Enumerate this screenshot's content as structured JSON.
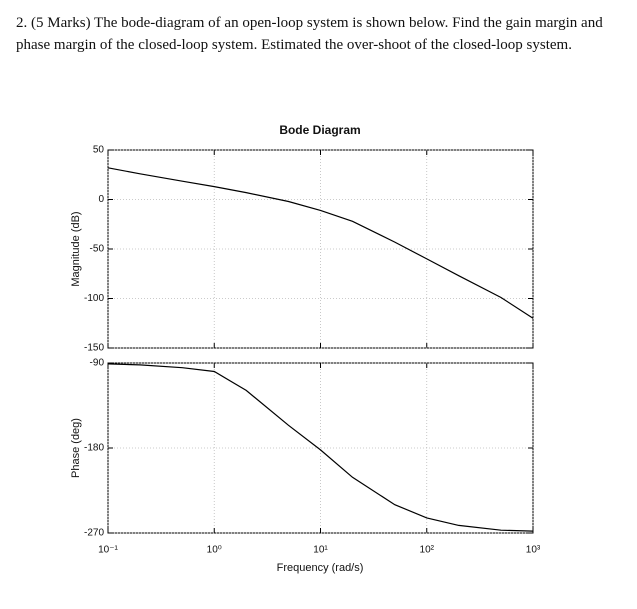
{
  "question": "2. (5 Marks) The bode-diagram of an open-loop system is shown below. Find the gain margin and phase margin of the closed-loop system. Estimated the over-shoot of the closed-loop system.",
  "chart_data": [
    {
      "type": "line",
      "title": "Bode Diagram",
      "ylabel": "Magnitude (dB)",
      "log_x": true,
      "grid": true,
      "x": [
        0.1,
        0.2,
        0.5,
        1,
        2,
        5,
        10,
        20,
        50,
        100,
        200,
        500,
        1000
      ],
      "values": [
        32,
        26,
        18.5,
        13,
        7,
        -2,
        -11,
        -22,
        -43,
        -60,
        -77,
        -99,
        -120
      ],
      "color": "#000000",
      "xlim": [
        0.1,
        1000
      ],
      "xticks": [
        0.1,
        1,
        10,
        100,
        1000
      ],
      "ylim": [
        -150,
        50
      ],
      "yticks": [
        50,
        0,
        -50,
        -100,
        -150
      ]
    },
    {
      "type": "line",
      "ylabel": "Phase (deg)",
      "xlabel": "Frequency (rad/s)",
      "log_x": true,
      "grid": true,
      "x": [
        0.1,
        0.2,
        0.5,
        1,
        2,
        5,
        10,
        20,
        50,
        100,
        200,
        500,
        1000
      ],
      "values": [
        -91,
        -92,
        -95,
        -99,
        -119,
        -156,
        -182,
        -211,
        -240,
        -254,
        -262,
        -267,
        -268
      ],
      "color": "#000000",
      "xlim": [
        0.1,
        1000
      ],
      "xticks": [
        {
          "value": 0.1,
          "label": "10⁻¹"
        },
        {
          "value": 1,
          "label": "10⁰"
        },
        {
          "value": 10,
          "label": "10¹"
        },
        {
          "value": 100,
          "label": "10²"
        },
        {
          "value": 1000,
          "label": "10³"
        }
      ],
      "ylim": [
        -270,
        -90
      ],
      "yticks": [
        -90,
        -180,
        -270
      ]
    }
  ]
}
